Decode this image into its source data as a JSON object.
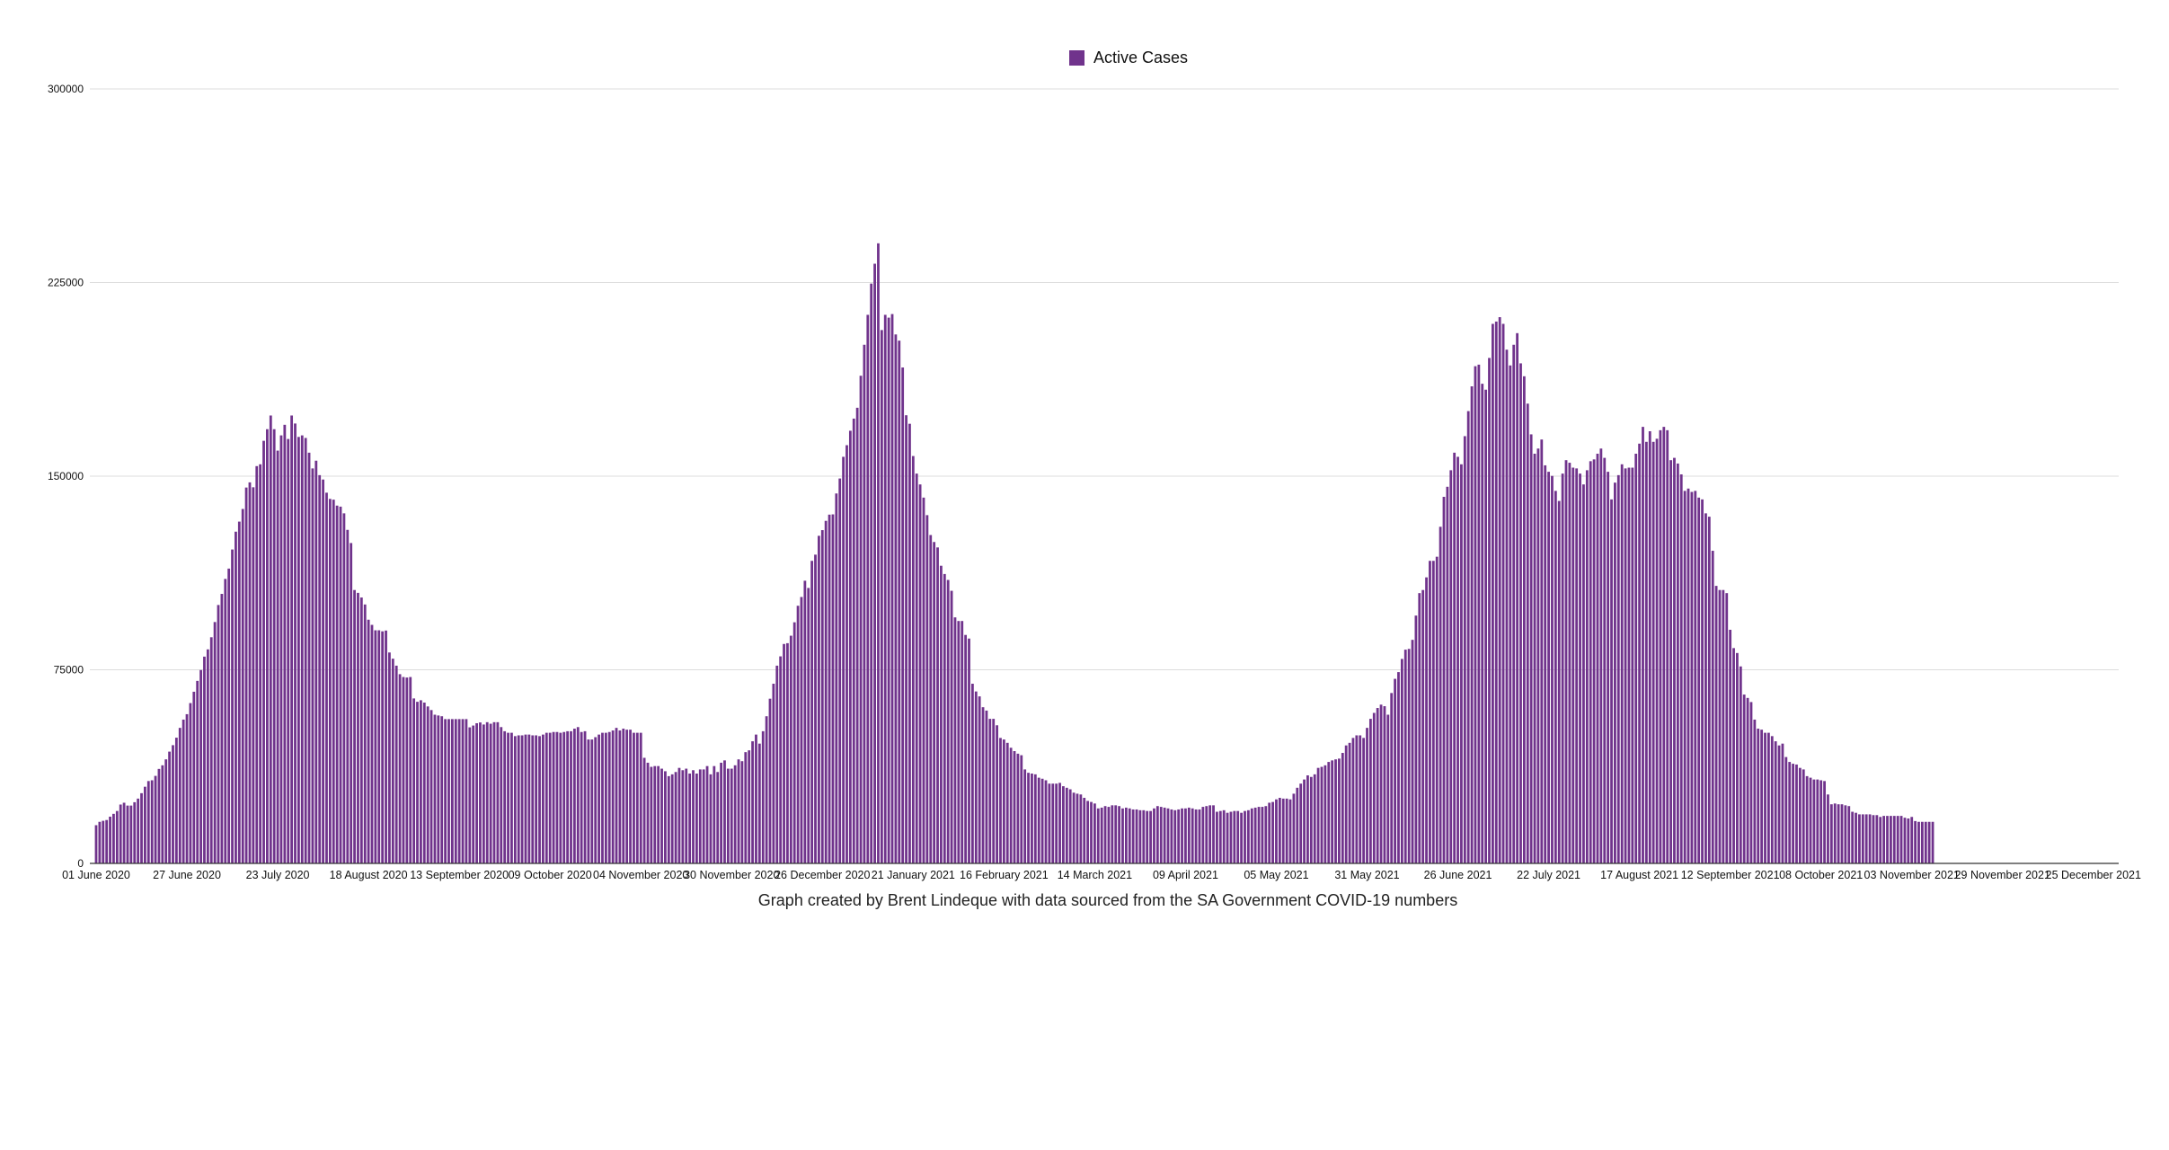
{
  "chart_data": {
    "type": "bar",
    "title": "",
    "legend": {
      "label": "Active Cases",
      "position": "top-center"
    },
    "caption": "Graph created by Brent Lindeque with data sourced from the SA Government COVID-19 numbers",
    "xlabel": "",
    "ylabel": "",
    "ylim": [
      0,
      300000
    ],
    "y_ticks": [
      0,
      75000,
      150000,
      225000,
      300000
    ],
    "grid": true,
    "series_color": "#70338c",
    "start_date": "01 June 2020",
    "interval_days": 1,
    "x_range_days": [
      0,
      579
    ],
    "x_tick_step_days": 26,
    "x_ticks": [
      "01 June 2020",
      "27 June 2020",
      "23 July 2020",
      "18 August 2020",
      "13 September 2020",
      "09 October 2020",
      "04 November 2020",
      "30 November 2020",
      "26 December 2020",
      "21 January 2021",
      "16 February 2021",
      "14 March 2021",
      "09 April 2021",
      "05 May 2021",
      "31 May 2021",
      "26 June 2021",
      "22 July 2021",
      "17 August 2021",
      "12 September 2021",
      "08 October 2021",
      "03 November 2021",
      "29 November 2021",
      "25 December 2021"
    ],
    "series": [
      {
        "name": "Active Cases",
        "values": [
          14800,
          16100,
          16500,
          16800,
          18100,
          19200,
          20300,
          22800,
          23500,
          22400,
          22400,
          23700,
          25100,
          27200,
          29700,
          31900,
          32200,
          33900,
          36600,
          38000,
          40300,
          43300,
          45800,
          48700,
          52500,
          55700,
          57800,
          62100,
          66500,
          70700,
          74900,
          80100,
          82900,
          87600,
          93500,
          100100,
          104400,
          110200,
          114200,
          121600,
          128500,
          132400,
          137300,
          145600,
          147600,
          145700,
          153900,
          154600,
          163700,
          168200,
          173500,
          168200,
          159900,
          165800,
          169900,
          164400,
          173500,
          170400,
          165200,
          165800,
          164800,
          159100,
          153000,
          156000,
          150400,
          148700,
          143600,
          141200,
          140900,
          138600,
          138200,
          135600,
          129200,
          124100,
          105900,
          104800,
          103000,
          100300,
          94400,
          92400,
          90300,
          90300,
          89900,
          90200,
          81700,
          79300,
          76600,
          73300,
          72200,
          72000,
          72200,
          63900,
          62600,
          63200,
          62300,
          60800,
          59400,
          57600,
          57300,
          57000,
          55900,
          55900,
          55900,
          55900,
          55900,
          55900,
          55900,
          52700,
          53400,
          54300,
          54600,
          53800,
          54700,
          54100,
          54700,
          54700,
          52800,
          51200,
          50600,
          50600,
          49300,
          49600,
          49600,
          49900,
          49900,
          49600,
          49600,
          49300,
          49900,
          50600,
          50600,
          50900,
          50900,
          50600,
          50900,
          51200,
          51200,
          52200,
          52800,
          50900,
          51200,
          48000,
          48000,
          48900,
          49900,
          50600,
          50600,
          50900,
          51500,
          52500,
          51500,
          52200,
          51800,
          51800,
          50600,
          50600,
          50600,
          40900,
          39000,
          37400,
          37700,
          37700,
          36700,
          35700,
          33800,
          34500,
          35400,
          37000,
          36100,
          36700,
          34800,
          36100,
          34800,
          36400,
          36400,
          37700,
          34500,
          37700,
          35400,
          39000,
          39900,
          36700,
          36700,
          38000,
          40300,
          39600,
          43100,
          43800,
          47300,
          49900,
          46400,
          51200,
          57000,
          63800,
          69600,
          76600,
          80200,
          85000,
          85300,
          88200,
          93400,
          99800,
          103200,
          109500,
          106700,
          117200,
          119600,
          126900,
          129100,
          132700,
          135100,
          135200,
          143300,
          149100,
          157500,
          162000,
          167600,
          172300,
          176500,
          188900,
          200900,
          212500,
          224600,
          232300,
          240200,
          206600,
          212500,
          211400,
          212800,
          204900,
          202500,
          192100,
          173600,
          170300,
          157800,
          151000,
          146800,
          141700,
          134900,
          127200,
          124500,
          122400,
          115300,
          112100,
          109800,
          105600,
          95300,
          93900,
          93900,
          88500,
          87100,
          69600,
          66600,
          64700,
          60500,
          59200,
          56000,
          56000,
          53500,
          48600,
          48000,
          46700,
          44800,
          43500,
          42500,
          41900,
          36400,
          35100,
          34800,
          34500,
          33200,
          32800,
          32200,
          30900,
          30900,
          30900,
          31200,
          29900,
          29300,
          28700,
          27400,
          27000,
          26700,
          25400,
          24200,
          23800,
          23200,
          21300,
          21600,
          22200,
          21900,
          22500,
          22500,
          22200,
          21300,
          21600,
          21300,
          20900,
          20900,
          20600,
          20600,
          20300,
          20300,
          21300,
          22200,
          21900,
          21600,
          21300,
          20900,
          20600,
          20900,
          21300,
          21300,
          21600,
          21300,
          20900,
          20900,
          21900,
          22200,
          22500,
          22500,
          20000,
          20300,
          20600,
          19600,
          20000,
          20300,
          20300,
          19600,
          20300,
          20600,
          21300,
          21600,
          21900,
          21900,
          22200,
          23500,
          23800,
          24800,
          25400,
          25100,
          25100,
          24800,
          27000,
          29300,
          30900,
          32500,
          34100,
          33500,
          34500,
          37000,
          37400,
          38000,
          39300,
          39900,
          40300,
          40600,
          42800,
          45700,
          46700,
          48600,
          49600,
          49600,
          48600,
          52500,
          56000,
          58300,
          60200,
          61500,
          60900,
          57600,
          66000,
          71500,
          74100,
          79200,
          82800,
          83100,
          86600,
          96000,
          104700,
          105900,
          110800,
          117200,
          117200,
          118800,
          130400,
          142000,
          145900,
          152300,
          159100,
          157500,
          154600,
          165500,
          175200,
          184800,
          192600,
          193200,
          185800,
          183500,
          195800,
          209000,
          209900,
          211600,
          209000,
          199000,
          192900,
          200900,
          205400,
          193700,
          188700,
          178100,
          166200,
          158700,
          160700,
          164200,
          154200,
          151700,
          150100,
          144300,
          140400,
          151000,
          156200,
          155200,
          153300,
          153000,
          151000,
          146800,
          152300,
          155800,
          156500,
          158700,
          160700,
          157100,
          151700,
          141000,
          147500,
          150400,
          154600,
          153000,
          153300,
          153300,
          158700,
          162600,
          169100,
          163300,
          167400,
          163300,
          164500,
          167800,
          169100,
          167800,
          156200,
          157100,
          154900,
          150700,
          144300,
          145200,
          143900,
          144300,
          141700,
          141000,
          135600,
          134300,
          121100,
          107500,
          105900,
          105900,
          104700,
          90500,
          83400,
          81500,
          76300,
          65400,
          64100,
          62500,
          55700,
          52200,
          51800,
          50600,
          50600,
          49300,
          47300,
          45700,
          46400,
          41200,
          39300,
          38600,
          38300,
          37000,
          36400,
          33800,
          33200,
          32500,
          32500,
          32200,
          31900,
          26700,
          22900,
          23200,
          22900,
          22900,
          22500,
          22200,
          20000,
          19600,
          19000,
          19000,
          19000,
          19000,
          18700,
          18700,
          18000,
          18400,
          18400,
          18400,
          18400,
          18400,
          18400,
          17700,
          17400,
          18000,
          16400,
          16100,
          16100,
          16100,
          16100,
          16100
        ]
      }
    ]
  }
}
